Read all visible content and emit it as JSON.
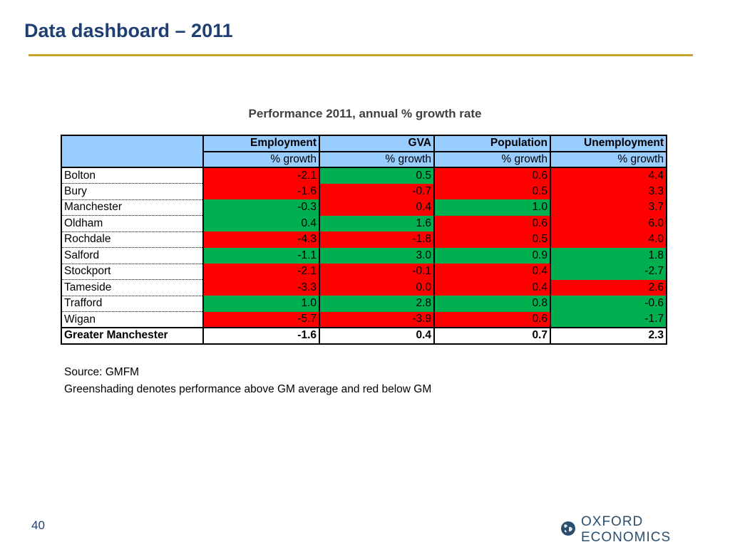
{
  "header": {
    "title": "Data dashboard – 2011"
  },
  "table": {
    "title": "Performance 2011, annual % growth rate",
    "columns": [
      "Employment",
      "GVA",
      "Population",
      "Unemployment"
    ],
    "subheader": "% growth",
    "rows": [
      {
        "name": "Bolton",
        "values": [
          "-2.1",
          "0.5",
          "0.6",
          "4.4"
        ],
        "shading": [
          "red",
          "green",
          "red",
          "red"
        ]
      },
      {
        "name": "Bury",
        "values": [
          "-1.6",
          "-0.7",
          "0.5",
          "3.3"
        ],
        "shading": [
          "red",
          "red",
          "red",
          "red"
        ]
      },
      {
        "name": "Manchester",
        "values": [
          "-0.3",
          "0.4",
          "1.0",
          "3.7"
        ],
        "shading": [
          "green",
          "red",
          "green",
          "red"
        ]
      },
      {
        "name": "Oldham",
        "values": [
          "0.4",
          "1.6",
          "0.6",
          "6.0"
        ],
        "shading": [
          "green",
          "green",
          "red",
          "red"
        ]
      },
      {
        "name": "Rochdale",
        "values": [
          "-4.3",
          "-1.8",
          "0.5",
          "4.0"
        ],
        "shading": [
          "red",
          "red",
          "red",
          "red"
        ]
      },
      {
        "name": "Salford",
        "values": [
          "-1.1",
          "3.0",
          "0.9",
          "1.8"
        ],
        "shading": [
          "green",
          "green",
          "green",
          "green"
        ]
      },
      {
        "name": "Stockport",
        "values": [
          "-2.1",
          "-0.1",
          "0.4",
          "-2.7"
        ],
        "shading": [
          "red",
          "red",
          "red",
          "green"
        ]
      },
      {
        "name": "Tameside",
        "values": [
          "-3.3",
          "0.0",
          "0.4",
          "2.6"
        ],
        "shading": [
          "red",
          "red",
          "red",
          "red"
        ]
      },
      {
        "name": "Trafford",
        "values": [
          "1.0",
          "2.8",
          "0.8",
          "-0.6"
        ],
        "shading": [
          "green",
          "green",
          "green",
          "green"
        ]
      },
      {
        "name": "Wigan",
        "values": [
          "-5.7",
          "-3.9",
          "0.6",
          "-1.7"
        ],
        "shading": [
          "red",
          "red",
          "red",
          "green"
        ]
      }
    ],
    "total": {
      "name": "Greater Manchester",
      "values": [
        "-1.6",
        "0.4",
        "0.7",
        "2.3"
      ]
    }
  },
  "notes": {
    "source": "Source: GMFM",
    "legend": "Greenshading denotes performance above GM average and red below GM"
  },
  "footer": {
    "page_number": "40",
    "logo_text": "OXFORD ECONOMICS",
    "logo_icon": "globe-icon"
  },
  "colors": {
    "title": "#1f3f73",
    "rule": "#c8a22a",
    "header_fill": "#99ccff",
    "above_average": "#00b050",
    "below_average": "#ff0000"
  }
}
